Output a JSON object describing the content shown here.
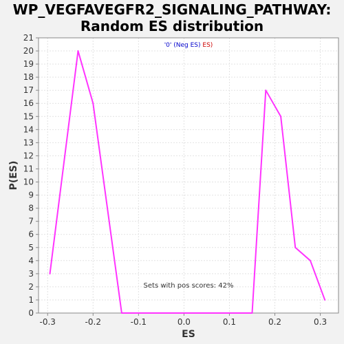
{
  "title_line1": "WP_VEGFAVEGFR2_SIGNALING_PATHWAY:",
  "title_line2": "Random ES distribution",
  "chart_data": {
    "type": "line",
    "xlabel": "ES",
    "ylabel": "P(ES)",
    "xlim": [
      -0.32,
      0.34
    ],
    "ylim": [
      0,
      21
    ],
    "xticks": [
      -0.3,
      -0.2,
      -0.1,
      0.0,
      0.1,
      0.2,
      0.3
    ],
    "xtick_labels": [
      "-0.3",
      "-0.2",
      "-0.1",
      "0.0",
      "0.1",
      "0.2",
      "0.3"
    ],
    "yticks": [
      0,
      1,
      2,
      3,
      4,
      5,
      6,
      7,
      8,
      9,
      10,
      11,
      12,
      13,
      14,
      15,
      16,
      17,
      18,
      19,
      20,
      21
    ],
    "grid": true,
    "legend": {
      "placement": "top-center",
      "prefix": "'0' (Neg ES)",
      "suffix": " ES)",
      "prefix_color": "#0000cc",
      "suffix_color": "#cc0000"
    },
    "annotation": "Sets with pos scores: 42%",
    "series": [
      {
        "color": "#ff33ff",
        "x": [
          -0.295,
          -0.233,
          -0.2,
          -0.137,
          0.15,
          0.18,
          0.213,
          0.245,
          0.278,
          0.31
        ],
        "y": [
          3,
          20,
          16,
          0,
          0,
          17,
          15,
          5,
          4,
          1
        ]
      }
    ]
  }
}
